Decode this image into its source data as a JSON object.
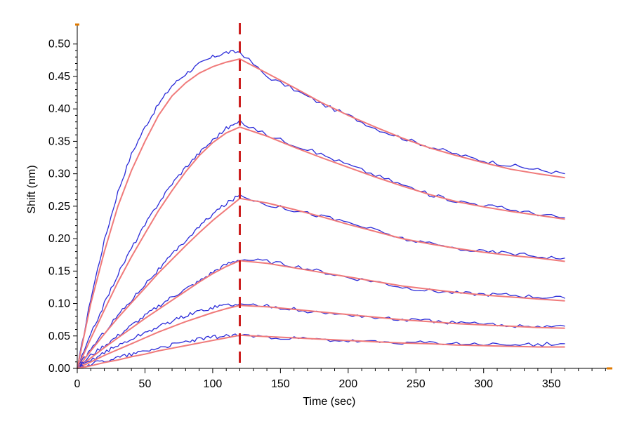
{
  "chart_data": {
    "type": "line",
    "title": "",
    "xlabel": "Time (sec)",
    "ylabel": "Shift (nm)",
    "xlim": [
      0,
      395
    ],
    "ylim": [
      0,
      0.53
    ],
    "x_ticks": [
      0,
      50,
      100,
      150,
      200,
      250,
      300,
      350
    ],
    "y_ticks": [
      0.0,
      0.05,
      0.1,
      0.15,
      0.2,
      0.25,
      0.3,
      0.35,
      0.4,
      0.45,
      0.5
    ],
    "y_tick_labels": [
      "0.00",
      "0.05",
      "0.10",
      "0.15",
      "0.20",
      "0.25",
      "0.30",
      "0.35",
      "0.40",
      "0.45",
      "0.50"
    ],
    "x_tick_labels": [
      "0",
      "50",
      "100",
      "150",
      "200",
      "250",
      "300",
      "350"
    ],
    "grid": false,
    "legend": "none",
    "association_end": 120,
    "x": [
      0,
      10,
      20,
      30,
      40,
      50,
      60,
      70,
      80,
      90,
      100,
      110,
      120,
      140,
      160,
      180,
      200,
      220,
      240,
      260,
      280,
      300,
      320,
      340,
      360
    ],
    "series_data": [
      {
        "role": "measured",
        "values": [
          0.0,
          0.108,
          0.197,
          0.272,
          0.33,
          0.372,
          0.407,
          0.436,
          0.454,
          0.469,
          0.48,
          0.487,
          0.488,
          0.45,
          0.43,
          0.408,
          0.39,
          0.37,
          0.355,
          0.342,
          0.33,
          0.32,
          0.313,
          0.306,
          0.3
        ]
      },
      {
        "role": "fit",
        "values": [
          0.0,
          0.1,
          0.18,
          0.25,
          0.305,
          0.35,
          0.39,
          0.42,
          0.44,
          0.455,
          0.465,
          0.472,
          0.477,
          0.455,
          0.433,
          0.41,
          0.39,
          0.372,
          0.355,
          0.34,
          0.328,
          0.317,
          0.307,
          0.3,
          0.294
        ]
      },
      {
        "role": "measured",
        "values": [
          0.0,
          0.052,
          0.1,
          0.145,
          0.185,
          0.221,
          0.255,
          0.285,
          0.31,
          0.332,
          0.352,
          0.37,
          0.38,
          0.36,
          0.345,
          0.33,
          0.314,
          0.298,
          0.283,
          0.268,
          0.258,
          0.252,
          0.245,
          0.238,
          0.232
        ]
      },
      {
        "role": "fit",
        "values": [
          0.0,
          0.046,
          0.09,
          0.133,
          0.172,
          0.208,
          0.243,
          0.274,
          0.303,
          0.328,
          0.348,
          0.363,
          0.372,
          0.358,
          0.341,
          0.325,
          0.31,
          0.295,
          0.281,
          0.268,
          0.257,
          0.249,
          0.242,
          0.236,
          0.23
        ]
      },
      {
        "role": "measured",
        "values": [
          0.0,
          0.03,
          0.056,
          0.082,
          0.105,
          0.13,
          0.152,
          0.175,
          0.197,
          0.218,
          0.238,
          0.254,
          0.267,
          0.253,
          0.244,
          0.235,
          0.225,
          0.213,
          0.2,
          0.192,
          0.185,
          0.18,
          0.178,
          0.173,
          0.17
        ]
      },
      {
        "role": "fit",
        "values": [
          0.0,
          0.027,
          0.053,
          0.078,
          0.101,
          0.124,
          0.147,
          0.168,
          0.189,
          0.209,
          0.228,
          0.245,
          0.262,
          0.255,
          0.245,
          0.234,
          0.222,
          0.211,
          0.2,
          0.192,
          0.185,
          0.179,
          0.174,
          0.17,
          0.165
        ]
      },
      {
        "role": "measured",
        "values": [
          0.0,
          0.02,
          0.035,
          0.05,
          0.066,
          0.081,
          0.096,
          0.11,
          0.122,
          0.134,
          0.148,
          0.16,
          0.168,
          0.165,
          0.158,
          0.149,
          0.14,
          0.134,
          0.125,
          0.12,
          0.116,
          0.114,
          0.113,
          0.11,
          0.108
        ]
      },
      {
        "role": "fit",
        "values": [
          0.0,
          0.016,
          0.032,
          0.047,
          0.062,
          0.077,
          0.091,
          0.105,
          0.119,
          0.133,
          0.146,
          0.157,
          0.166,
          0.162,
          0.155,
          0.148,
          0.141,
          0.134,
          0.127,
          0.122,
          0.117,
          0.113,
          0.11,
          0.107,
          0.104
        ]
      },
      {
        "role": "measured",
        "values": [
          0.0,
          0.012,
          0.025,
          0.035,
          0.045,
          0.055,
          0.064,
          0.073,
          0.081,
          0.088,
          0.094,
          0.098,
          0.098,
          0.097,
          0.091,
          0.085,
          0.083,
          0.078,
          0.075,
          0.073,
          0.07,
          0.068,
          0.066,
          0.065,
          0.065
        ]
      },
      {
        "role": "fit",
        "values": [
          0.0,
          0.01,
          0.02,
          0.029,
          0.038,
          0.047,
          0.056,
          0.064,
          0.072,
          0.079,
          0.086,
          0.092,
          0.097,
          0.095,
          0.091,
          0.087,
          0.083,
          0.079,
          0.075,
          0.072,
          0.069,
          0.067,
          0.065,
          0.063,
          0.062
        ]
      },
      {
        "role": "measured",
        "values": [
          0.0,
          0.007,
          0.012,
          0.017,
          0.022,
          0.027,
          0.032,
          0.036,
          0.041,
          0.045,
          0.048,
          0.05,
          0.051,
          0.049,
          0.046,
          0.044,
          0.042,
          0.04,
          0.04,
          0.039,
          0.038,
          0.037,
          0.036,
          0.037,
          0.038
        ]
      },
      {
        "role": "fit",
        "values": [
          0.0,
          0.004,
          0.009,
          0.013,
          0.018,
          0.022,
          0.027,
          0.031,
          0.035,
          0.039,
          0.043,
          0.047,
          0.051,
          0.049,
          0.047,
          0.045,
          0.043,
          0.041,
          0.039,
          0.038,
          0.036,
          0.035,
          0.034,
          0.033,
          0.033
        ]
      }
    ]
  },
  "colors": {
    "measured": "#2b2bd9",
    "fit": "#f07a7a",
    "association_marker": "#cc1f1f",
    "axis": "#000000",
    "axis_end_marker": "#e07a00"
  }
}
